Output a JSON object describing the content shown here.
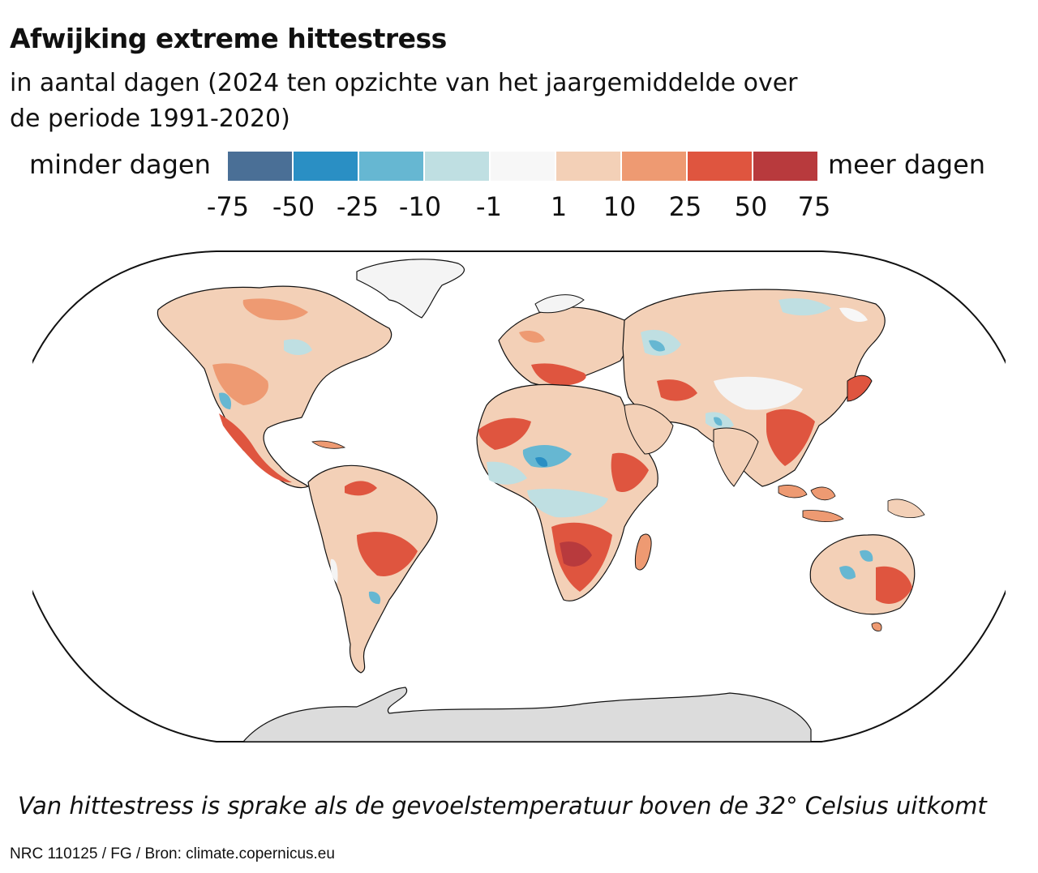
{
  "header": {
    "title": "Afwijking extreme hittestress",
    "subtitle": "in aantal dagen (2024 ten opzichte van het jaargemiddelde over de periode 1991-2020)"
  },
  "legend": {
    "low_label": "minder dagen",
    "high_label": "meer dagen",
    "ticks": [
      "-75",
      "-50",
      "-25",
      "-10",
      "-1",
      "1",
      "10",
      "25",
      "50",
      "75"
    ],
    "colors": [
      "#4a6f96",
      "#2a8fc4",
      "#66b7d2",
      "#bfdfe2",
      "#f7f7f7",
      "#f3d0b7",
      "#ee9a72",
      "#df553f",
      "#b83a3d"
    ]
  },
  "map": {
    "antarctica_color": "#dcdcdc",
    "no_data_color": "#f4f4f4",
    "coast_color": "#111111"
  },
  "footnote": "Van hittestress is sprake als de gevoelstemperatuur boven de 32° Celsius uitkomt",
  "credit": "NRC 110125 / FG / Bron: climate.copernicus.eu"
}
